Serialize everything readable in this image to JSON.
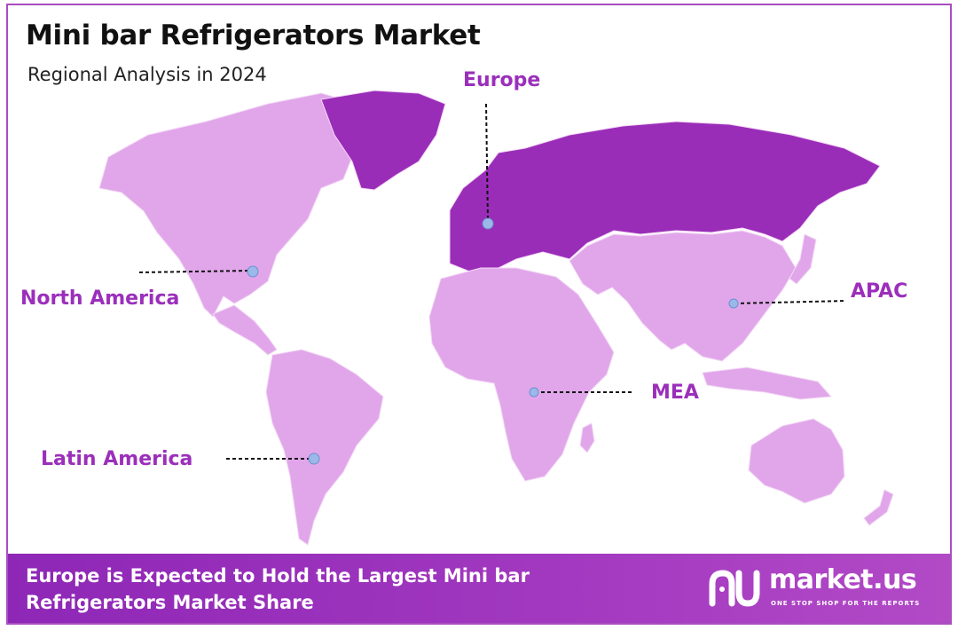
{
  "header": {
    "title": "Mini bar Refrigerators Market",
    "subtitle": "Regional Analysis in 2024"
  },
  "regions": [
    {
      "key": "europe",
      "label": "Europe",
      "highlighted": true
    },
    {
      "key": "north_america",
      "label": "North America",
      "highlighted": false
    },
    {
      "key": "apac",
      "label": "APAC",
      "highlighted": false
    },
    {
      "key": "mea",
      "label": "MEA",
      "highlighted": false
    },
    {
      "key": "latin_america",
      "label": "Latin America",
      "highlighted": false
    }
  ],
  "colors": {
    "highlight": "#9a2db8",
    "land": "#e1a6ea",
    "label": "#9b2fbb",
    "marker": "#9bb9e8",
    "footer": "#8e27b6"
  },
  "footer": {
    "text": "Europe is Expected to Hold the Largest Mini bar Refrigerators Market Share"
  },
  "logo": {
    "name": "market.us",
    "tagline": "ONE STOP SHOP FOR THE REPORTS"
  }
}
